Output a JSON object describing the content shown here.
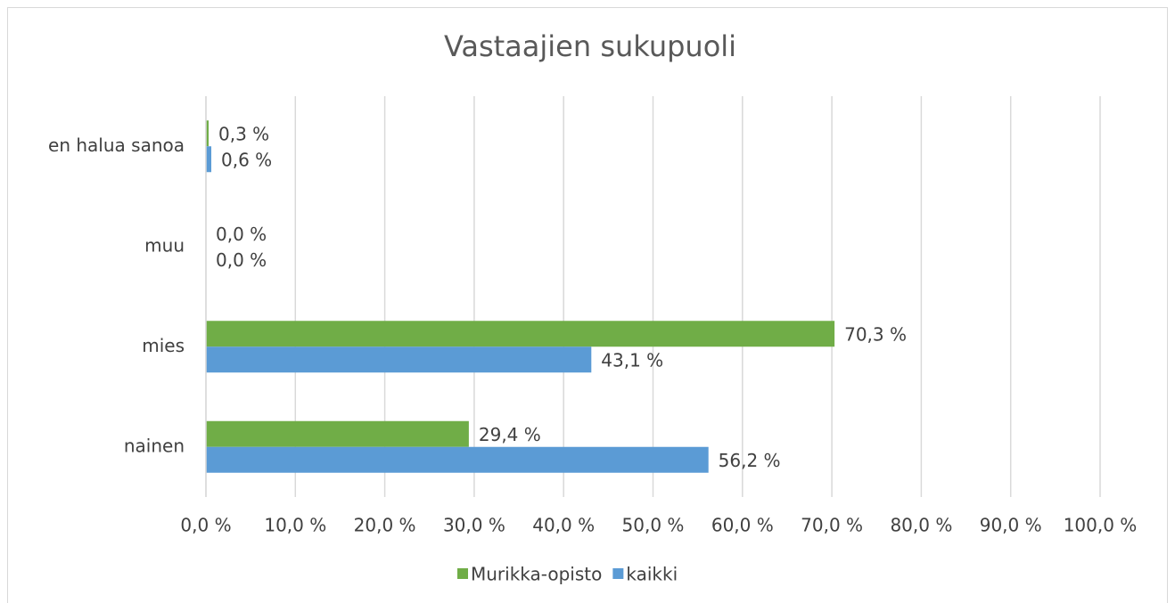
{
  "chart_data": {
    "type": "hbar",
    "title": "Vastaajien sukupuoli",
    "categories": [
      "en halua sanoa",
      "muu",
      "mies",
      "nainen"
    ],
    "series": [
      {
        "name": "Murikka-opisto",
        "color": "#70ad47",
        "values": [
          0.3,
          0,
          70.3,
          29.4
        ],
        "value_labels": [
          "0,3 %",
          "0,0 %",
          "70,3 %",
          "29,4 %"
        ]
      },
      {
        "name": "kaikki",
        "color": "#5b9bd5",
        "values": [
          0.6,
          0,
          43.1,
          56.2
        ],
        "value_labels": [
          "0,6 %",
          "0,0 %",
          "43,1 %",
          "56,2 %"
        ]
      }
    ],
    "xlim": [
      0,
      100
    ],
    "xticks": [
      {
        "value": 0,
        "label": "0,0 %"
      },
      {
        "value": 10,
        "label": "10,0 %"
      },
      {
        "value": 20,
        "label": "20,0 %"
      },
      {
        "value": 30,
        "label": "30,0 %"
      },
      {
        "value": 40,
        "label": "40,0 %"
      },
      {
        "value": 50,
        "label": "50,0 %"
      },
      {
        "value": 60,
        "label": "60,0 %"
      },
      {
        "value": 70,
        "label": "70,0 %"
      },
      {
        "value": 80,
        "label": "80,0 %"
      },
      {
        "value": 90,
        "label": "90,0 %"
      },
      {
        "value": 100,
        "label": "100,0 %"
      }
    ],
    "grid": true,
    "legend": "bottom"
  }
}
